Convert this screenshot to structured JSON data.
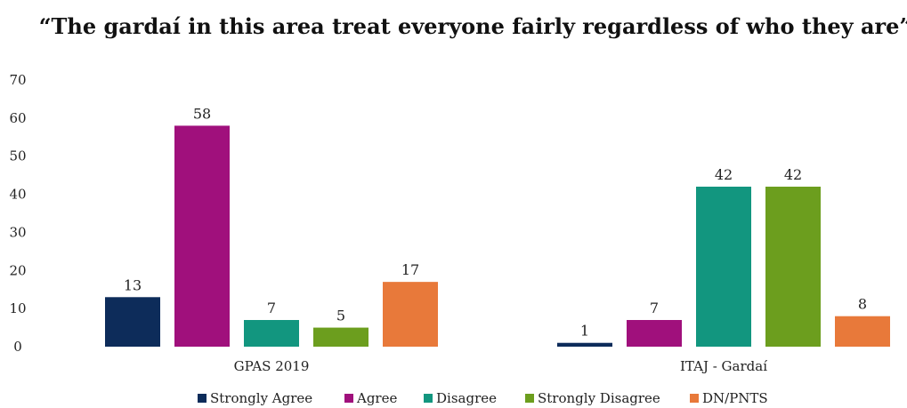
{
  "chart_data": {
    "type": "bar",
    "title": "“The gardaí in this area treat everyone fairly regardless of who they are”",
    "categories": [
      "GPAS 2019",
      "ITAJ - Gardaí"
    ],
    "series": [
      {
        "name": "Strongly Agree",
        "color": "#0d2c5a",
        "values": [
          13,
          1
        ]
      },
      {
        "name": "Agree",
        "color": "#a0107c",
        "values": [
          58,
          7
        ]
      },
      {
        "name": "Disagree",
        "color": "#12967f",
        "values": [
          7,
          42
        ]
      },
      {
        "name": "Strongly Disagree",
        "color": "#6c9e1e",
        "values": [
          5,
          42
        ]
      },
      {
        "name": "DN/PNTS",
        "color": "#e8793a",
        "values": [
          17,
          8
        ]
      }
    ],
    "yticks": [
      0,
      10,
      20,
      30,
      40,
      50,
      60,
      70
    ],
    "ylim": [
      0,
      70
    ],
    "grid": false,
    "legend": "bottom"
  }
}
